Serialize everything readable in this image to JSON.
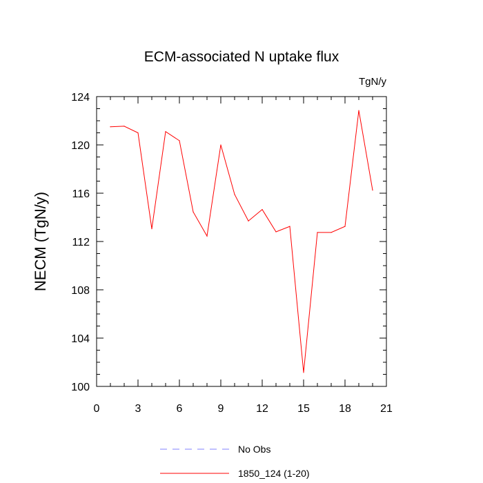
{
  "chart_data": {
    "type": "line",
    "title": "ECM-associated N uptake flux",
    "units": "TgN/y",
    "xlabel": "",
    "ylabel": "NECM  (TgN/y)",
    "xlim": [
      0,
      21
    ],
    "ylim": [
      100,
      124
    ],
    "xticks": [
      0,
      3,
      6,
      9,
      12,
      15,
      18,
      21
    ],
    "yticks": [
      100,
      104,
      108,
      112,
      116,
      120,
      124
    ],
    "grid": false,
    "legend_position": "bottom",
    "series": [
      {
        "name": "No Obs",
        "color": "#8080ff",
        "dash": "dashed",
        "x": [],
        "values": []
      },
      {
        "name": "1850_124 (1-20)",
        "color": "#ff0000",
        "dash": "solid",
        "x": [
          1,
          2,
          3,
          4,
          5,
          6,
          7,
          8,
          9,
          10,
          11,
          12,
          13,
          14,
          15,
          16,
          17,
          18,
          19,
          20
        ],
        "values": [
          121.5,
          121.55,
          121.0,
          113.05,
          121.1,
          120.35,
          114.45,
          112.45,
          120.0,
          115.9,
          113.7,
          114.65,
          112.8,
          113.25,
          101.15,
          112.75,
          112.75,
          113.25,
          122.85,
          116.25
        ]
      }
    ]
  }
}
